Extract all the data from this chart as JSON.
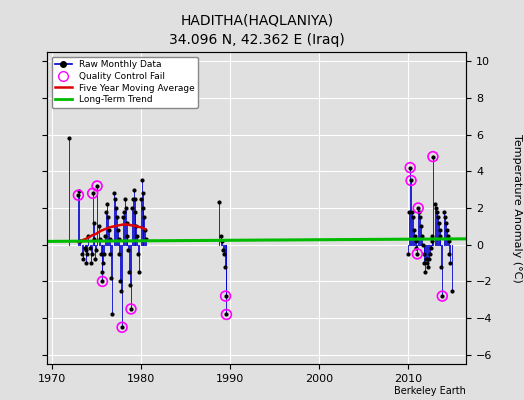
{
  "title": "HADITHA(HAQLANIYA)",
  "subtitle": "34.096 N, 42.362 E (Iraq)",
  "ylabel": "Temperature Anomaly (°C)",
  "xlabel_credit": "Berkeley Earth",
  "ylim": [
    -6.5,
    10.5
  ],
  "xlim": [
    1969.5,
    2016.5
  ],
  "yticks": [
    -6,
    -4,
    -2,
    0,
    2,
    4,
    6,
    8,
    10
  ],
  "xticks": [
    1970,
    1980,
    1990,
    2000,
    2010
  ],
  "bg_color": "#e0e0e0",
  "plot_bg_color": "#e0e0e0",
  "raw_data": [
    [
      1972.0,
      5.8
    ],
    [
      1973.0,
      2.7
    ],
    [
      1973.1,
      2.9
    ],
    [
      1973.2,
      0.2
    ],
    [
      1973.4,
      -0.5
    ],
    [
      1973.5,
      -0.8
    ],
    [
      1973.7,
      -0.2
    ],
    [
      1973.8,
      -1.0
    ],
    [
      1973.9,
      -0.3
    ],
    [
      1974.0,
      -0.5
    ],
    [
      1974.1,
      0.5
    ],
    [
      1974.3,
      -0.2
    ],
    [
      1974.4,
      -1.0
    ],
    [
      1974.5,
      -0.5
    ],
    [
      1974.6,
      2.8
    ],
    [
      1974.7,
      1.2
    ],
    [
      1974.8,
      0.3
    ],
    [
      1974.9,
      -0.8
    ],
    [
      1975.0,
      -0.3
    ],
    [
      1975.1,
      3.2
    ],
    [
      1975.3,
      1.0
    ],
    [
      1975.4,
      0.3
    ],
    [
      1975.5,
      -0.5
    ],
    [
      1975.6,
      -1.5
    ],
    [
      1975.7,
      -2.0
    ],
    [
      1975.8,
      -1.0
    ],
    [
      1975.9,
      -0.5
    ],
    [
      1976.0,
      0.5
    ],
    [
      1976.1,
      1.8
    ],
    [
      1976.2,
      2.2
    ],
    [
      1976.3,
      1.5
    ],
    [
      1976.4,
      0.8
    ],
    [
      1976.5,
      0.3
    ],
    [
      1976.6,
      -0.5
    ],
    [
      1976.7,
      -1.8
    ],
    [
      1976.8,
      -3.8
    ],
    [
      1977.0,
      2.8
    ],
    [
      1977.1,
      2.5
    ],
    [
      1977.2,
      2.0
    ],
    [
      1977.3,
      1.5
    ],
    [
      1977.4,
      0.8
    ],
    [
      1977.5,
      0.3
    ],
    [
      1977.6,
      -0.5
    ],
    [
      1977.7,
      -2.0
    ],
    [
      1977.8,
      -2.5
    ],
    [
      1977.9,
      -4.5
    ],
    [
      1978.0,
      1.5
    ],
    [
      1978.1,
      1.8
    ],
    [
      1978.2,
      2.5
    ],
    [
      1978.3,
      2.0
    ],
    [
      1978.4,
      1.2
    ],
    [
      1978.5,
      0.5
    ],
    [
      1978.6,
      -0.3
    ],
    [
      1978.7,
      -1.5
    ],
    [
      1978.8,
      -2.2
    ],
    [
      1978.9,
      -3.5
    ],
    [
      1979.0,
      2.0
    ],
    [
      1979.1,
      2.5
    ],
    [
      1979.2,
      3.0
    ],
    [
      1979.3,
      2.5
    ],
    [
      1979.4,
      1.8
    ],
    [
      1979.5,
      1.0
    ],
    [
      1979.6,
      0.5
    ],
    [
      1979.7,
      -0.5
    ],
    [
      1979.8,
      -1.5
    ],
    [
      1980.0,
      2.5
    ],
    [
      1980.1,
      3.5
    ],
    [
      1980.2,
      2.8
    ],
    [
      1980.3,
      2.0
    ],
    [
      1980.4,
      1.5
    ],
    [
      1980.5,
      0.8
    ],
    [
      1980.6,
      0.3
    ],
    [
      1988.8,
      2.3
    ],
    [
      1989.0,
      0.5
    ],
    [
      1989.1,
      0.2
    ],
    [
      1989.2,
      -0.3
    ],
    [
      1989.3,
      -0.5
    ],
    [
      1989.4,
      -1.2
    ],
    [
      1989.5,
      -2.8
    ],
    [
      1989.6,
      -3.8
    ],
    [
      2010.0,
      -0.5
    ],
    [
      2010.1,
      1.8
    ],
    [
      2010.2,
      4.2
    ],
    [
      2010.3,
      3.5
    ],
    [
      2010.4,
      1.8
    ],
    [
      2010.5,
      1.5
    ],
    [
      2010.6,
      0.8
    ],
    [
      2010.7,
      0.5
    ],
    [
      2010.8,
      0.2
    ],
    [
      2010.9,
      -0.2
    ],
    [
      2011.0,
      -0.5
    ],
    [
      2011.1,
      2.0
    ],
    [
      2011.2,
      1.8
    ],
    [
      2011.3,
      1.5
    ],
    [
      2011.4,
      1.0
    ],
    [
      2011.5,
      0.5
    ],
    [
      2011.6,
      0.0
    ],
    [
      2011.7,
      -0.5
    ],
    [
      2011.8,
      -1.0
    ],
    [
      2011.9,
      -1.5
    ],
    [
      2012.0,
      -0.8
    ],
    [
      2012.1,
      -1.0
    ],
    [
      2012.2,
      -1.2
    ],
    [
      2012.3,
      -0.8
    ],
    [
      2012.4,
      -0.5
    ],
    [
      2012.5,
      -0.2
    ],
    [
      2012.6,
      0.2
    ],
    [
      2012.7,
      0.5
    ],
    [
      2012.75,
      4.8
    ],
    [
      2013.0,
      2.2
    ],
    [
      2013.1,
      2.0
    ],
    [
      2013.2,
      1.8
    ],
    [
      2013.3,
      1.5
    ],
    [
      2013.4,
      1.2
    ],
    [
      2013.5,
      0.8
    ],
    [
      2013.6,
      0.5
    ],
    [
      2013.7,
      -1.2
    ],
    [
      2013.8,
      -2.8
    ],
    [
      2014.0,
      1.8
    ],
    [
      2014.1,
      1.5
    ],
    [
      2014.2,
      1.2
    ],
    [
      2014.3,
      0.8
    ],
    [
      2014.4,
      0.5
    ],
    [
      2014.5,
      0.2
    ],
    [
      2014.6,
      -0.5
    ],
    [
      2014.7,
      -1.0
    ],
    [
      2014.9,
      -2.5
    ]
  ],
  "qc_fail_points": [
    [
      1973.0,
      2.7
    ],
    [
      1974.6,
      2.8
    ],
    [
      1975.1,
      3.2
    ],
    [
      1975.7,
      -2.0
    ],
    [
      1977.9,
      -4.5
    ],
    [
      1978.9,
      -3.5
    ],
    [
      1989.5,
      -2.8
    ],
    [
      1989.6,
      -3.8
    ],
    [
      2010.2,
      4.2
    ],
    [
      2010.3,
      3.5
    ],
    [
      2011.0,
      -0.5
    ],
    [
      2011.1,
      2.0
    ],
    [
      2012.75,
      4.8
    ],
    [
      2013.8,
      -2.8
    ]
  ],
  "moving_avg": [
    [
      1973.0,
      0.15
    ],
    [
      1973.5,
      0.25
    ],
    [
      1974.0,
      0.35
    ],
    [
      1974.5,
      0.5
    ],
    [
      1975.0,
      0.6
    ],
    [
      1975.5,
      0.75
    ],
    [
      1976.0,
      0.85
    ],
    [
      1976.5,
      0.95
    ],
    [
      1977.0,
      1.0
    ],
    [
      1977.5,
      1.05
    ],
    [
      1978.0,
      1.1
    ],
    [
      1978.5,
      1.1
    ],
    [
      1979.0,
      1.05
    ],
    [
      1979.5,
      1.0
    ],
    [
      1980.0,
      0.95
    ],
    [
      1980.5,
      0.85
    ]
  ],
  "trend_x": [
    1969.5,
    2016.5
  ],
  "trend_y": [
    0.18,
    0.32
  ],
  "line_color": "#0000cc",
  "dot_color": "#000000",
  "qc_color": "#ff00ff",
  "ma_color": "#dd0000",
  "trend_color": "#00bb00"
}
